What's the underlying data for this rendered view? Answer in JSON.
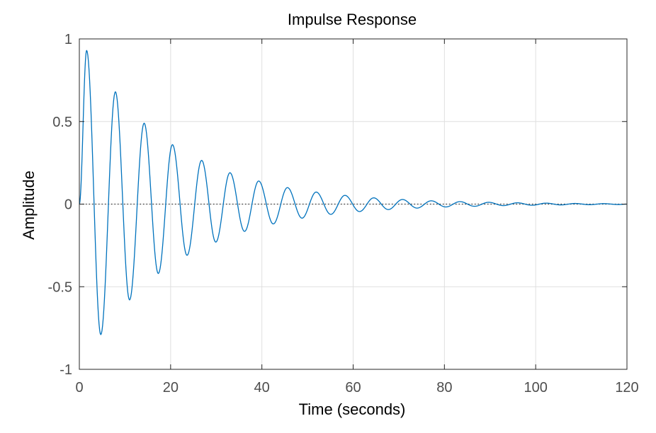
{
  "chart_data": {
    "type": "line",
    "title": "Impulse Response",
    "xlabel": "Time (seconds)",
    "ylabel": "Amplitude",
    "xlim": [
      0,
      120
    ],
    "ylim": [
      -1,
      1
    ],
    "xticks": [
      0,
      20,
      40,
      60,
      80,
      100,
      120
    ],
    "xtick_labels": [
      "0",
      "20",
      "40",
      "60",
      "80",
      "100",
      "120"
    ],
    "yticks": [
      1,
      0.5,
      0,
      -0.5,
      -1
    ],
    "ytick_labels": [
      "1",
      "0.5",
      "0",
      "-0.5",
      "-1"
    ],
    "grid": true,
    "reference_line": {
      "y": 0,
      "style": "dotted"
    },
    "series": [
      {
        "name": "impulse response",
        "color": "#0072bd",
        "x": [
          0,
          1.6,
          4.7,
          7.9,
          11.0,
          14.2,
          17.3,
          20.4,
          23.6,
          26.8,
          29.9,
          33.0,
          36.2,
          39.3,
          42.5,
          45.6,
          48.8,
          51.9,
          55.1,
          58.2,
          61.4,
          64.5,
          67.7,
          70.8,
          74.0,
          77.1,
          80.3,
          83.4,
          86.6,
          89.7,
          92.9,
          96.0,
          99.2,
          102.3,
          105.5,
          108.6,
          111.8,
          114.9,
          118.1,
          120
        ],
        "y": [
          0,
          0.93,
          -0.79,
          0.68,
          -0.58,
          0.49,
          -0.42,
          0.36,
          -0.31,
          0.265,
          -0.23,
          0.19,
          -0.165,
          0.14,
          -0.12,
          0.1,
          -0.085,
          0.073,
          -0.062,
          0.053,
          -0.045,
          0.038,
          -0.033,
          0.028,
          -0.024,
          0.02,
          -0.017,
          0.015,
          -0.013,
          0.011,
          -0.009,
          0.008,
          -0.007,
          0.006,
          -0.005,
          0.004,
          -0.0035,
          0.003,
          -0.0025,
          0
        ]
      }
    ]
  }
}
